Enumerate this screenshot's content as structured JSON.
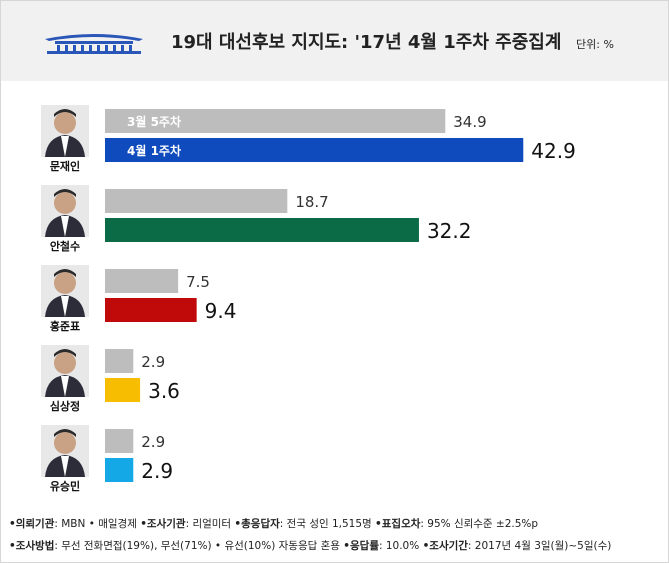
{
  "header": {
    "title": "19대 대선후보 지지도: '17년 4월 1주차 주중집계",
    "unit": "단위: %"
  },
  "chart_data": {
    "type": "bar",
    "orientation": "horizontal",
    "title": "19대 대선후보 지지도: '17년 4월 1주차 주중집계",
    "unit": "%",
    "categories": [
      "문재인",
      "안철수",
      "홍준표",
      "심상정",
      "유승민"
    ],
    "series": [
      {
        "name": "3월 5주차",
        "values": [
          34.9,
          18.7,
          7.5,
          2.9,
          2.9
        ],
        "color": "#bdbdbd"
      },
      {
        "name": "4월 1주차",
        "values": [
          42.9,
          32.2,
          9.4,
          3.6,
          2.9
        ],
        "colors": [
          "#0f4bbd",
          "#0a6b46",
          "#c00a0a",
          "#f7bd00",
          "#15a8e6"
        ]
      }
    ],
    "value_labels": {
      "prev": [
        "34.9",
        "18.7",
        "7.5",
        "2.9",
        "2.9"
      ],
      "curr": [
        "42.9",
        "32.2",
        "9.4",
        "3.6",
        "2.9"
      ]
    },
    "legend_placement": "inside-first-bars",
    "grid": false
  },
  "footer": {
    "row1": [
      {
        "key": "의뢰기관",
        "value": ": MBN • 매일경제"
      },
      {
        "key": "조사기관",
        "value": ": 리얼미터"
      },
      {
        "key": "총응답자",
        "value": ": 전국 성인 1,515명"
      },
      {
        "key": "표집오차",
        "value": ": 95% 신뢰수준 ±2.5%p"
      }
    ],
    "row2": [
      {
        "key": "조사방법",
        "value": ": 무선 전화면접(19%), 무선(71%) • 유선(10%) 자동응답 혼용"
      },
      {
        "key": "응답률",
        "value": ": 10.0%"
      },
      {
        "key": "조사기간",
        "value": ": 2017년 4월 3일(월)~5일(수)"
      }
    ]
  }
}
